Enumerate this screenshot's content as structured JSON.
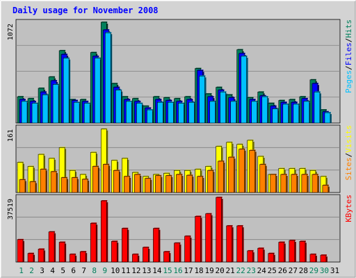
{
  "chart_data": {
    "type": "bar",
    "title": "Daily usage for November 2008",
    "categories": [
      "1",
      "2",
      "3",
      "4",
      "5",
      "6",
      "7",
      "8",
      "9",
      "10",
      "11",
      "12",
      "13",
      "14",
      "15",
      "16",
      "17",
      "18",
      "19",
      "20",
      "21",
      "22",
      "23",
      "24",
      "25",
      "26",
      "27",
      "28",
      "29",
      "30",
      "31"
    ],
    "weekend_days": [
      "1",
      "2",
      "8",
      "9",
      "15",
      "16",
      "22",
      "23",
      "29",
      "30"
    ],
    "colors": {
      "hits": "#00805c",
      "files": "#0000ff",
      "pages": "#00c0ff",
      "visits": "#ffff00",
      "sites": "#ff8000",
      "kbytes": "#ff0000",
      "title": "#0000ff",
      "weekend_label": "#00805c",
      "weekday_label": "#000000",
      "plot_bg": "#c0c0c0",
      "frame_bg": "#d3d3d3"
    },
    "panels": [
      {
        "ymax_label": "1072",
        "ymax": 1072,
        "legend": [
          "Pages",
          "Files",
          "Hits"
        ],
        "legend_separator": "/",
        "series": [
          {
            "name": "Hits",
            "values": [
              280,
              260,
              370,
              490,
              770,
              250,
              250,
              750,
              1072,
              420,
              280,
              260,
              180,
              280,
              270,
              260,
              280,
              580,
              310,
              380,
              300,
              780,
              270,
              330,
              210,
              240,
              250,
              280,
              460,
              140
            ]
          },
          {
            "name": "Files",
            "values": [
              250,
              230,
              330,
              450,
              730,
              240,
              230,
              710,
              990,
              380,
              250,
              230,
              160,
              250,
              240,
              230,
              250,
              560,
              280,
              350,
              270,
              740,
              250,
              290,
              180,
              220,
              220,
              260,
              420,
              120
            ]
          },
          {
            "name": "Pages",
            "values": [
              230,
              210,
              300,
              410,
              690,
              220,
              210,
              690,
              960,
              350,
              230,
              210,
              140,
              220,
              220,
              210,
              220,
              500,
              230,
              330,
              230,
              710,
              230,
              280,
              150,
              200,
              200,
              230,
              330,
              110
            ]
          }
        ]
      },
      {
        "ymax_label": "161",
        "ymax": 161,
        "legend": [
          "Sites",
          "Visits"
        ],
        "legend_separator": "/",
        "series": [
          {
            "name": "Visits",
            "values": [
              75,
              65,
              95,
              85,
              112,
              55,
              45,
              100,
              158,
              80,
              85,
              50,
              40,
              45,
              48,
              55,
              55,
              58,
              65,
              115,
              125,
              120,
              130,
              90,
              45,
              60,
              60,
              60,
              55,
              40
            ]
          },
          {
            "name": "Sites",
            "values": [
              32,
              27,
              58,
              52,
              37,
              37,
              33,
              65,
              70,
              55,
              40,
              45,
              35,
              42,
              42,
              45,
              43,
              40,
              55,
              78,
              88,
              108,
              105,
              70,
              45,
              45,
              45,
              45,
              45,
              18
            ]
          }
        ]
      },
      {
        "ymax_label": "37519",
        "ymax": 37519,
        "legend": [
          "KBytes"
        ],
        "series": [
          {
            "name": "KBytes",
            "values": [
              13000,
              5000,
              7500,
              17500,
              11500,
              4500,
              6000,
              22500,
              35500,
              12000,
              19500,
              4500,
              8500,
              19500,
              6000,
              11000,
              15000,
              26500,
              28000,
              37519,
              21000,
              21000,
              6500,
              8000,
              5000,
              11500,
              12500,
              12000,
              4500,
              4000
            ]
          }
        ]
      }
    ]
  }
}
